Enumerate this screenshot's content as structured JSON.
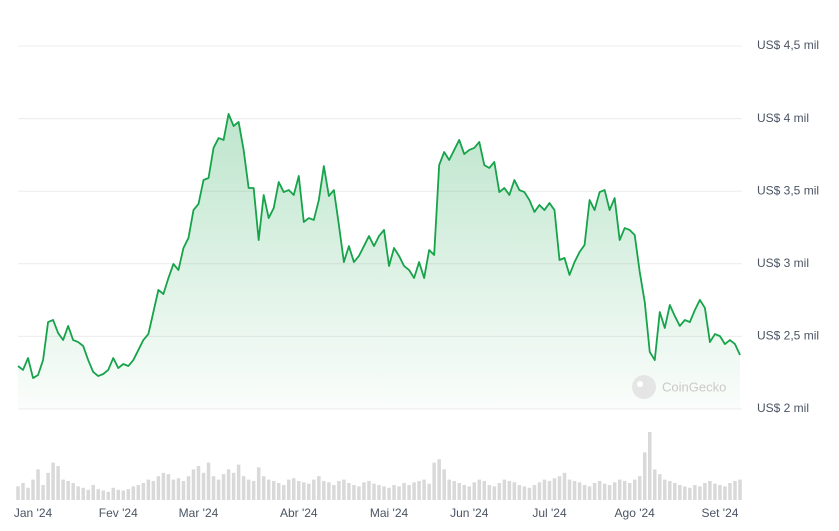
{
  "chart_data": {
    "type": "line",
    "categories": [
      null,
      null,
      null,
      "Jan '24",
      null,
      null,
      null,
      null,
      null,
      null,
      null,
      null,
      null,
      null,
      null,
      null,
      null,
      null,
      null,
      null,
      "Fev '24",
      null,
      null,
      null,
      null,
      null,
      null,
      null,
      null,
      null,
      null,
      null,
      null,
      null,
      null,
      null,
      "Mar '24",
      null,
      null,
      null,
      null,
      null,
      null,
      null,
      null,
      null,
      null,
      null,
      null,
      null,
      null,
      null,
      null,
      null,
      null,
      null,
      "Abr '24",
      null,
      null,
      null,
      null,
      null,
      null,
      null,
      null,
      null,
      null,
      null,
      null,
      null,
      null,
      null,
      null,
      null,
      "Mai '24",
      null,
      null,
      null,
      null,
      null,
      null,
      null,
      null,
      null,
      null,
      null,
      null,
      null,
      null,
      null,
      "Jun '24",
      null,
      null,
      null,
      null,
      null,
      null,
      null,
      null,
      null,
      null,
      null,
      null,
      null,
      null,
      null,
      "Jul '24",
      null,
      null,
      null,
      null,
      null,
      null,
      null,
      null,
      null,
      null,
      null,
      null,
      null,
      null,
      null,
      null,
      "Ago '24",
      null,
      null,
      null,
      null,
      null,
      null,
      null,
      null,
      null,
      null,
      null,
      null,
      null,
      null,
      null,
      null,
      "Set '24",
      null,
      null,
      null,
      null
    ],
    "series": [
      {
        "color": "#16a34a",
        "values": [
          2296,
          2269,
          2351,
          2213,
          2234,
          2337,
          2599,
          2613,
          2523,
          2475,
          2572,
          2475,
          2461,
          2434,
          2337,
          2255,
          2227,
          2241,
          2269,
          2351,
          2282,
          2310,
          2296,
          2337,
          2406,
          2475,
          2516,
          2668,
          2820,
          2792,
          2902,
          2999,
          2957,
          3109,
          3178,
          3370,
          3412,
          3577,
          3591,
          3798,
          3866,
          3853,
          4032,
          3949,
          3977,
          3784,
          3522,
          3522,
          3164,
          3474,
          3315,
          3384,
          3563,
          3494,
          3508,
          3474,
          3605,
          3288,
          3315,
          3302,
          3439,
          3673,
          3467,
          3508,
          3267,
          3012,
          3122,
          3012,
          3054,
          3122,
          3191,
          3122,
          3191,
          3233,
          2985,
          3109,
          3054,
          2985,
          2957,
          2902,
          3012,
          2902,
          3095,
          3061,
          3680,
          3770,
          3715,
          3784,
          3853,
          3756,
          3784,
          3798,
          3839,
          3680,
          3660,
          3701,
          3494,
          3522,
          3474,
          3577,
          3508,
          3494,
          3439,
          3357,
          3405,
          3370,
          3419,
          3370,
          3026,
          3040,
          2923,
          3012,
          3081,
          3130,
          3439,
          3370,
          3494,
          3508,
          3370,
          3453,
          3164,
          3246,
          3233,
          3198,
          2944,
          2737,
          2393,
          2337,
          2668,
          2558,
          2716,
          2640,
          2572,
          2613,
          2599,
          2682,
          2751,
          2696,
          2461,
          2516,
          2502,
          2447,
          2475,
          2447,
          2372
        ]
      }
    ],
    "volume": {
      "color": "#d9d9d9",
      "values": [
        20,
        25,
        18,
        30,
        45,
        22,
        40,
        55,
        50,
        30,
        28,
        25,
        20,
        18,
        15,
        22,
        16,
        14,
        12,
        18,
        15,
        14,
        16,
        20,
        22,
        25,
        30,
        28,
        35,
        40,
        38,
        30,
        32,
        28,
        35,
        45,
        50,
        40,
        55,
        35,
        30,
        38,
        45,
        40,
        52,
        35,
        30,
        28,
        48,
        35,
        30,
        28,
        25,
        22,
        30,
        32,
        28,
        26,
        24,
        30,
        35,
        28,
        26,
        22,
        28,
        30,
        25,
        22,
        20,
        26,
        28,
        24,
        22,
        20,
        18,
        22,
        20,
        25,
        22,
        26,
        28,
        30,
        24,
        55,
        60,
        45,
        30,
        28,
        25,
        22,
        20,
        26,
        30,
        28,
        22,
        20,
        25,
        30,
        28,
        26,
        22,
        20,
        18,
        22,
        26,
        30,
        28,
        32,
        35,
        40,
        30,
        28,
        26,
        22,
        20,
        25,
        28,
        24,
        22,
        26,
        30,
        28,
        25,
        30,
        35,
        70,
        100,
        45,
        38,
        30,
        28,
        25,
        22,
        20,
        18,
        22,
        20,
        25,
        28,
        24,
        22,
        20,
        25,
        28,
        30
      ],
      "lim": [
        0,
        100
      ]
    },
    "ylim": [
      2000,
      4500
    ],
    "yticks": [
      {
        "value": 2000,
        "label": "US$ 2 mil"
      },
      {
        "value": 2500,
        "label": "US$ 2,5 mil"
      },
      {
        "value": 3000,
        "label": "US$ 3 mil"
      },
      {
        "value": 3500,
        "label": "US$ 3,5 mil"
      },
      {
        "value": 4000,
        "label": "US$ 4 mil"
      },
      {
        "value": 4500,
        "label": "US$ 4,5 mil"
      }
    ],
    "grid": true,
    "watermark": "CoinGecko"
  }
}
